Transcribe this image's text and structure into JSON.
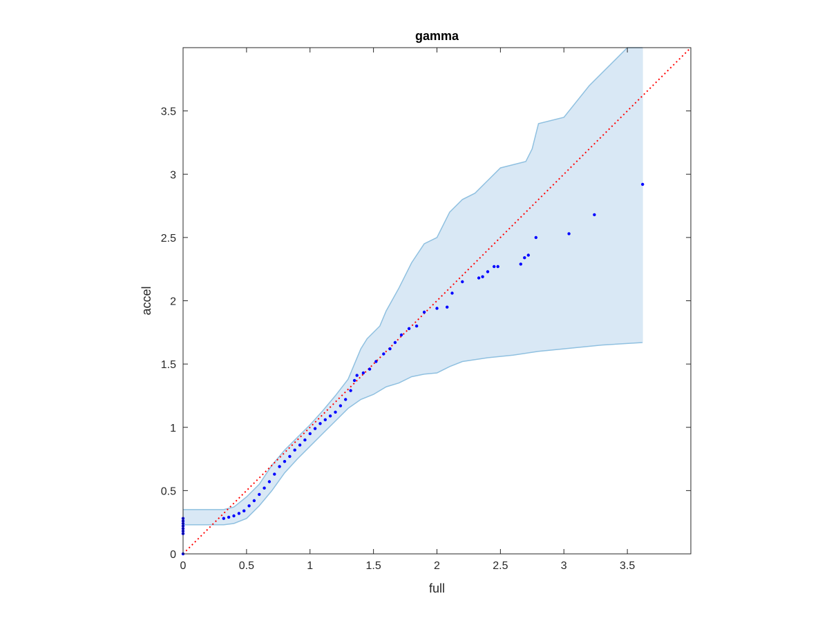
{
  "chart_data": {
    "type": "scatter",
    "title": "gamma",
    "xlabel": "full",
    "ylabel": "accel",
    "xlim": [
      0,
      4
    ],
    "ylim": [
      0,
      4
    ],
    "x_ticks": [
      0,
      0.5,
      1,
      1.5,
      2,
      2.5,
      3,
      3.5
    ],
    "y_ticks": [
      0,
      0.5,
      1,
      1.5,
      2,
      2.5,
      3,
      3.5
    ],
    "x_tick_labels": [
      "0",
      "0.5",
      "1",
      "1.5",
      "2",
      "2.5",
      "3",
      "3.5"
    ],
    "y_tick_labels": [
      "0",
      "0.5",
      "1",
      "1.5",
      "2",
      "2.5",
      "3",
      "3.5"
    ],
    "grid": false,
    "legend": "none",
    "reference_line": {
      "style": "dotted",
      "color": "#ff0000",
      "from": [
        0,
        0
      ],
      "to": [
        4,
        4
      ]
    },
    "band": {
      "fill_color": "#d9e8f5",
      "edge_color": "#8fc0e0",
      "upper": [
        [
          0,
          0.35
        ],
        [
          0.32,
          0.35
        ],
        [
          0.4,
          0.37
        ],
        [
          0.5,
          0.45
        ],
        [
          0.6,
          0.55
        ],
        [
          0.7,
          0.7
        ],
        [
          0.8,
          0.82
        ],
        [
          0.9,
          0.92
        ],
        [
          1.0,
          1.02
        ],
        [
          1.1,
          1.13
        ],
        [
          1.2,
          1.25
        ],
        [
          1.3,
          1.38
        ],
        [
          1.35,
          1.5
        ],
        [
          1.4,
          1.62
        ],
        [
          1.45,
          1.7
        ],
        [
          1.55,
          1.8
        ],
        [
          1.6,
          1.92
        ],
        [
          1.7,
          2.1
        ],
        [
          1.8,
          2.3
        ],
        [
          1.9,
          2.45
        ],
        [
          2.0,
          2.5
        ],
        [
          2.1,
          2.7
        ],
        [
          2.2,
          2.8
        ],
        [
          2.3,
          2.85
        ],
        [
          2.4,
          2.95
        ],
        [
          2.5,
          3.05
        ],
        [
          2.7,
          3.1
        ],
        [
          2.75,
          3.2
        ],
        [
          2.8,
          3.4
        ],
        [
          3.0,
          3.45
        ],
        [
          3.2,
          3.7
        ],
        [
          3.4,
          3.9
        ],
        [
          3.5,
          4.0
        ],
        [
          3.62,
          4.0
        ]
      ],
      "lower": [
        [
          0,
          0.23
        ],
        [
          0.32,
          0.23
        ],
        [
          0.4,
          0.24
        ],
        [
          0.5,
          0.28
        ],
        [
          0.6,
          0.38
        ],
        [
          0.7,
          0.5
        ],
        [
          0.8,
          0.64
        ],
        [
          0.9,
          0.75
        ],
        [
          1.0,
          0.85
        ],
        [
          1.1,
          0.95
        ],
        [
          1.2,
          1.05
        ],
        [
          1.3,
          1.15
        ],
        [
          1.4,
          1.22
        ],
        [
          1.5,
          1.26
        ],
        [
          1.6,
          1.32
        ],
        [
          1.7,
          1.35
        ],
        [
          1.8,
          1.4
        ],
        [
          1.9,
          1.42
        ],
        [
          2.0,
          1.43
        ],
        [
          2.1,
          1.48
        ],
        [
          2.2,
          1.52
        ],
        [
          2.4,
          1.55
        ],
        [
          2.6,
          1.57
        ],
        [
          2.8,
          1.6
        ],
        [
          3.0,
          1.62
        ],
        [
          3.3,
          1.65
        ],
        [
          3.62,
          1.67
        ]
      ]
    },
    "series": [
      {
        "color": "#0000ff",
        "points": [
          [
            0,
            0
          ],
          [
            0,
            0.16
          ],
          [
            0,
            0.18
          ],
          [
            0,
            0.2
          ],
          [
            0,
            0.22
          ],
          [
            0,
            0.24
          ],
          [
            0,
            0.26
          ],
          [
            0,
            0.28
          ],
          [
            0.32,
            0.28
          ],
          [
            0.36,
            0.29
          ],
          [
            0.4,
            0.3
          ],
          [
            0.44,
            0.32
          ],
          [
            0.48,
            0.34
          ],
          [
            0.52,
            0.38
          ],
          [
            0.56,
            0.42
          ],
          [
            0.6,
            0.47
          ],
          [
            0.64,
            0.52
          ],
          [
            0.68,
            0.57
          ],
          [
            0.72,
            0.63
          ],
          [
            0.76,
            0.69
          ],
          [
            0.8,
            0.73
          ],
          [
            0.84,
            0.77
          ],
          [
            0.88,
            0.82
          ],
          [
            0.92,
            0.86
          ],
          [
            0.96,
            0.9
          ],
          [
            1.0,
            0.95
          ],
          [
            1.04,
            0.99
          ],
          [
            1.08,
            1.03
          ],
          [
            1.12,
            1.06
          ],
          [
            1.16,
            1.09
          ],
          [
            1.2,
            1.12
          ],
          [
            1.24,
            1.17
          ],
          [
            1.28,
            1.22
          ],
          [
            1.32,
            1.29
          ],
          [
            1.35,
            1.37
          ],
          [
            1.37,
            1.41
          ],
          [
            1.42,
            1.43
          ],
          [
            1.47,
            1.46
          ],
          [
            1.52,
            1.52
          ],
          [
            1.58,
            1.58
          ],
          [
            1.63,
            1.62
          ],
          [
            1.67,
            1.67
          ],
          [
            1.72,
            1.73
          ],
          [
            1.78,
            1.78
          ],
          [
            1.84,
            1.8
          ],
          [
            1.9,
            1.91
          ],
          [
            2.0,
            1.94
          ],
          [
            2.08,
            1.95
          ],
          [
            2.12,
            2.06
          ],
          [
            2.2,
            2.15
          ],
          [
            2.33,
            2.18
          ],
          [
            2.36,
            2.19
          ],
          [
            2.4,
            2.23
          ],
          [
            2.45,
            2.27
          ],
          [
            2.48,
            2.27
          ],
          [
            2.66,
            2.29
          ],
          [
            2.69,
            2.34
          ],
          [
            2.72,
            2.36
          ],
          [
            2.78,
            2.5
          ],
          [
            3.04,
            2.53
          ],
          [
            3.24,
            2.68
          ],
          [
            3.62,
            2.92
          ]
        ]
      }
    ]
  }
}
